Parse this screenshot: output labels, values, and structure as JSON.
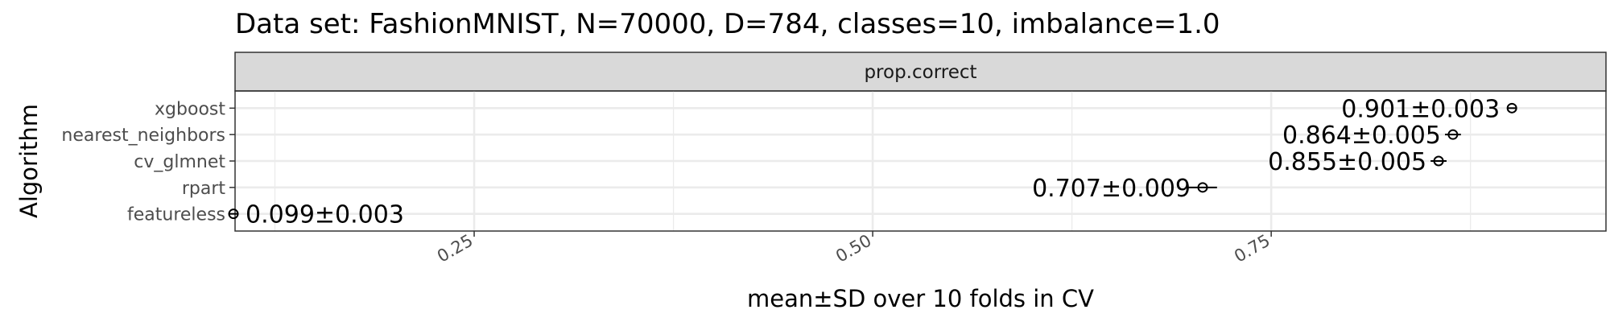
{
  "chart_data": {
    "type": "scatter",
    "title": "Data set: FashionMNIST, N=70000, D=784, classes=10, imbalance=1.0",
    "facet": "prop.correct",
    "xlabel": "mean±SD over 10 folds in CV",
    "ylabel": "Algorithm",
    "xlim": [
      0.1,
      0.96
    ],
    "xticks": [
      0.25,
      0.5,
      0.75
    ],
    "xtick_labels": [
      "0.25",
      "0.50",
      "0.75"
    ],
    "grid": true,
    "categories": [
      "xgboost",
      "nearest_neighbors",
      "cv_glmnet",
      "rpart",
      "featureless"
    ],
    "points": [
      {
        "algorithm": "xgboost",
        "mean": 0.901,
        "sd": 0.003,
        "label": "0.901±0.003"
      },
      {
        "algorithm": "nearest_neighbors",
        "mean": 0.864,
        "sd": 0.005,
        "label": "0.864±0.005"
      },
      {
        "algorithm": "cv_glmnet",
        "mean": 0.855,
        "sd": 0.005,
        "label": "0.855±0.005"
      },
      {
        "algorithm": "rpart",
        "mean": 0.707,
        "sd": 0.009,
        "label": "0.707±0.009"
      },
      {
        "algorithm": "featureless",
        "mean": 0.099,
        "sd": 0.003,
        "label": "0.099±0.003"
      }
    ],
    "colors": {
      "panel_border": "#333333",
      "strip_fill": "#d9d9d9",
      "grid": "#ebebeb",
      "point": "#000000"
    }
  }
}
